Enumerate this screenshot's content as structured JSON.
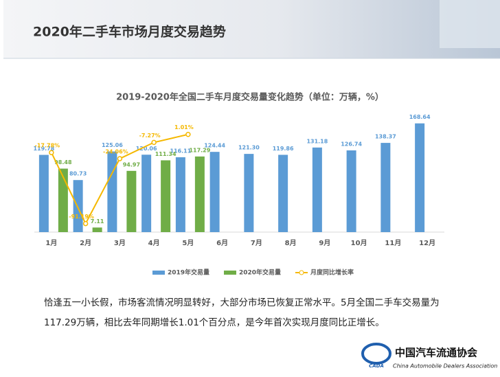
{
  "header_title": "2020年二手车市场月度交易趋势",
  "chart_data": {
    "type": "bar_line",
    "title": "2019-2020年全国二手车月度交易量变化趋势（单位：万辆，%）",
    "categories": [
      "1月",
      "2月",
      "3月",
      "4月",
      "5月",
      "6月",
      "7月",
      "8月",
      "9月",
      "10月",
      "11月",
      "12月"
    ],
    "ylim": [
      0,
      180
    ],
    "y2lim": [
      -100,
      20
    ],
    "series": [
      {
        "name": "2019年交易量",
        "color": "#5b9bd5",
        "kind": "bar",
        "values": [
          119.78,
          80.73,
          125.06,
          120.06,
          116.11,
          124.44,
          121.3,
          119.86,
          131.18,
          126.74,
          138.37,
          168.64
        ],
        "value_labels": [
          "119.78",
          "80.73",
          "125.06",
          "120.06",
          "116.11",
          "124.44",
          "121.30",
          "119.86",
          "131.18",
          "126.74",
          "138.37",
          "168.64"
        ]
      },
      {
        "name": "2020年交易量",
        "color": "#70ad47",
        "kind": "bar",
        "values": [
          98.48,
          7.11,
          94.97,
          111.34,
          117.29,
          null,
          null,
          null,
          null,
          null,
          null,
          null
        ],
        "value_labels": [
          "98.48",
          "7.11",
          "94.97",
          "111.34",
          "117.29",
          null,
          null,
          null,
          null,
          null,
          null,
          null
        ]
      },
      {
        "name": "月度同比增长率",
        "color": "#f5b800",
        "kind": "line",
        "axis": "y2",
        "values": [
          -17.78,
          -91.19,
          -24.06,
          -7.27,
          1.01,
          null,
          null,
          null,
          null,
          null,
          null,
          null
        ],
        "value_labels": [
          "-17.78%",
          "-91.19%",
          "-24.06%",
          "-7.27%",
          "1.01%",
          null,
          null,
          null,
          null,
          null,
          null,
          null
        ]
      }
    ]
  },
  "paragraph": [
    "恰逢五一小长假，市场客流情况明显转好，大部分市场已恢复正常水平。5月全国二手车交易量为",
    "117.29万辆，相比去年同期增长1.01个百分点，是今年首次实现月度同比正增长。"
  ],
  "logo": {
    "mark": "CADA",
    "name": "中国汽车流通协会",
    "english": "China Automobile Dealers Association"
  }
}
